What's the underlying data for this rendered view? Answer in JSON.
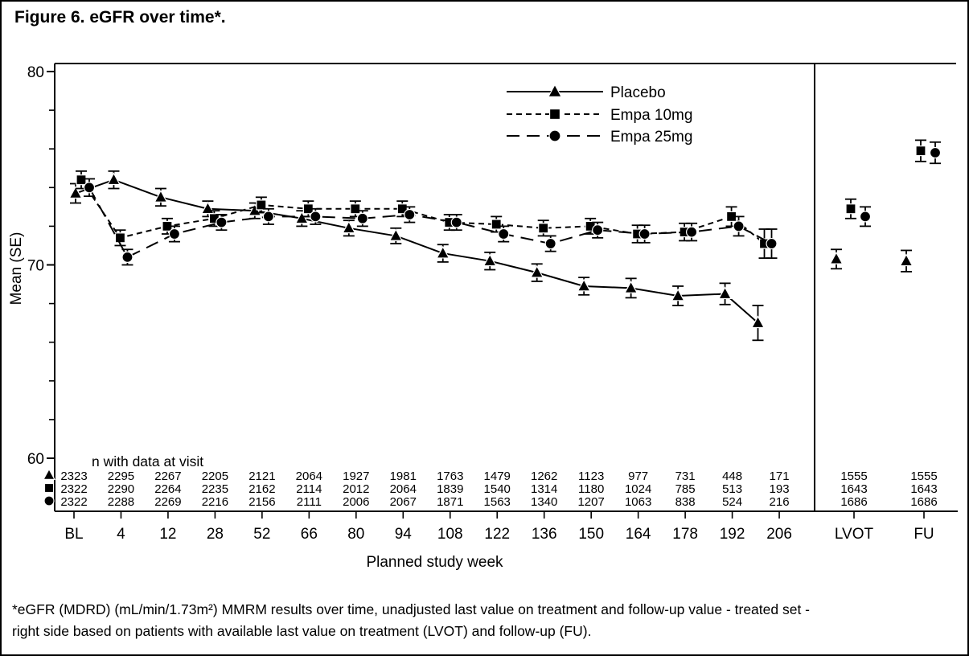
{
  "figure": {
    "title": "Figure 6. eGFR over time*.",
    "footnote_line1": "*eGFR (MDRD) (mL/min/1.73m²) MMRM results over time, unadjusted last value on treatment and follow-up value - treated set -",
    "footnote_line2": "right side based on patients with available last value on treatment (LVOT) and follow-up (FU)."
  },
  "chart_data": {
    "type": "line",
    "ylabel": "Mean (SE)",
    "xlabel": "Planned study week",
    "ylim": [
      57.3,
      80.4
    ],
    "yticks_major": [
      60,
      70,
      80
    ],
    "yticks_minor": [
      62,
      64,
      66,
      68,
      72,
      74,
      76,
      78
    ],
    "grid": "off",
    "legend_position": "inside-top-right",
    "x_categories": [
      "BL",
      "4",
      "12",
      "28",
      "52",
      "66",
      "80",
      "94",
      "108",
      "122",
      "136",
      "150",
      "164",
      "178",
      "192",
      "206"
    ],
    "x_point_positions": [
      0,
      1,
      2,
      3,
      4,
      5,
      6,
      7,
      8,
      9,
      10,
      11,
      12,
      13,
      14,
      14.7
    ],
    "right_panel_categories": [
      "LVOT",
      "FU"
    ],
    "n_table_title": "n with data at visit",
    "colors": {
      "foreground": "#000000",
      "background": "#ffffff"
    },
    "series": [
      {
        "name": "Placebo",
        "marker": "triangle",
        "line_style": "solid",
        "values": [
          73.7,
          74.4,
          73.5,
          72.9,
          72.8,
          72.4,
          71.9,
          71.5,
          70.6,
          70.2,
          69.6,
          68.9,
          68.8,
          68.4,
          68.5,
          67.0
        ],
        "se": [
          0.5,
          0.45,
          0.45,
          0.4,
          0.4,
          0.4,
          0.4,
          0.4,
          0.45,
          0.45,
          0.45,
          0.45,
          0.5,
          0.5,
          0.55,
          0.9
        ],
        "lvot": 70.3,
        "lvot_se": 0.5,
        "fu": 70.2,
        "fu_se": 0.55,
        "n_by_visit": [
          2323,
          2295,
          2267,
          2205,
          2121,
          2064,
          1927,
          1981,
          1763,
          1479,
          1262,
          1123,
          977,
          731,
          448,
          171
        ],
        "n_lvot": 1555,
        "n_fu": 1555
      },
      {
        "name": "Empa 10mg",
        "marker": "square",
        "line_style": "dashed-short",
        "values": [
          74.4,
          71.4,
          72.0,
          72.4,
          73.1,
          72.9,
          72.9,
          72.9,
          72.2,
          72.1,
          71.9,
          72.0,
          71.6,
          71.7,
          72.5,
          71.1
        ],
        "se": [
          0.45,
          0.4,
          0.4,
          0.4,
          0.4,
          0.4,
          0.4,
          0.4,
          0.4,
          0.4,
          0.4,
          0.4,
          0.45,
          0.45,
          0.5,
          0.75
        ],
        "lvot": 72.9,
        "lvot_se": 0.5,
        "fu": 75.9,
        "fu_se": 0.55,
        "n_by_visit": [
          2322,
          2290,
          2264,
          2235,
          2162,
          2114,
          2012,
          2064,
          1839,
          1540,
          1314,
          1180,
          1024,
          785,
          513,
          193
        ],
        "n_lvot": 1643,
        "n_fu": 1643
      },
      {
        "name": "Empa 25mg",
        "marker": "circle",
        "line_style": "dashed-long",
        "values": [
          74.0,
          70.4,
          71.6,
          72.2,
          72.5,
          72.5,
          72.4,
          72.6,
          72.2,
          71.6,
          71.1,
          71.8,
          71.6,
          71.7,
          72.0,
          71.1
        ],
        "se": [
          0.45,
          0.4,
          0.4,
          0.4,
          0.4,
          0.4,
          0.4,
          0.4,
          0.4,
          0.4,
          0.4,
          0.4,
          0.45,
          0.45,
          0.5,
          0.75
        ],
        "lvot": 72.5,
        "lvot_se": 0.5,
        "fu": 75.8,
        "fu_se": 0.55,
        "n_by_visit": [
          2322,
          2288,
          2269,
          2216,
          2156,
          2111,
          2006,
          2067,
          1871,
          1563,
          1340,
          1207,
          1063,
          838,
          524,
          216
        ],
        "n_lvot": 1686,
        "n_fu": 1686
      }
    ]
  }
}
